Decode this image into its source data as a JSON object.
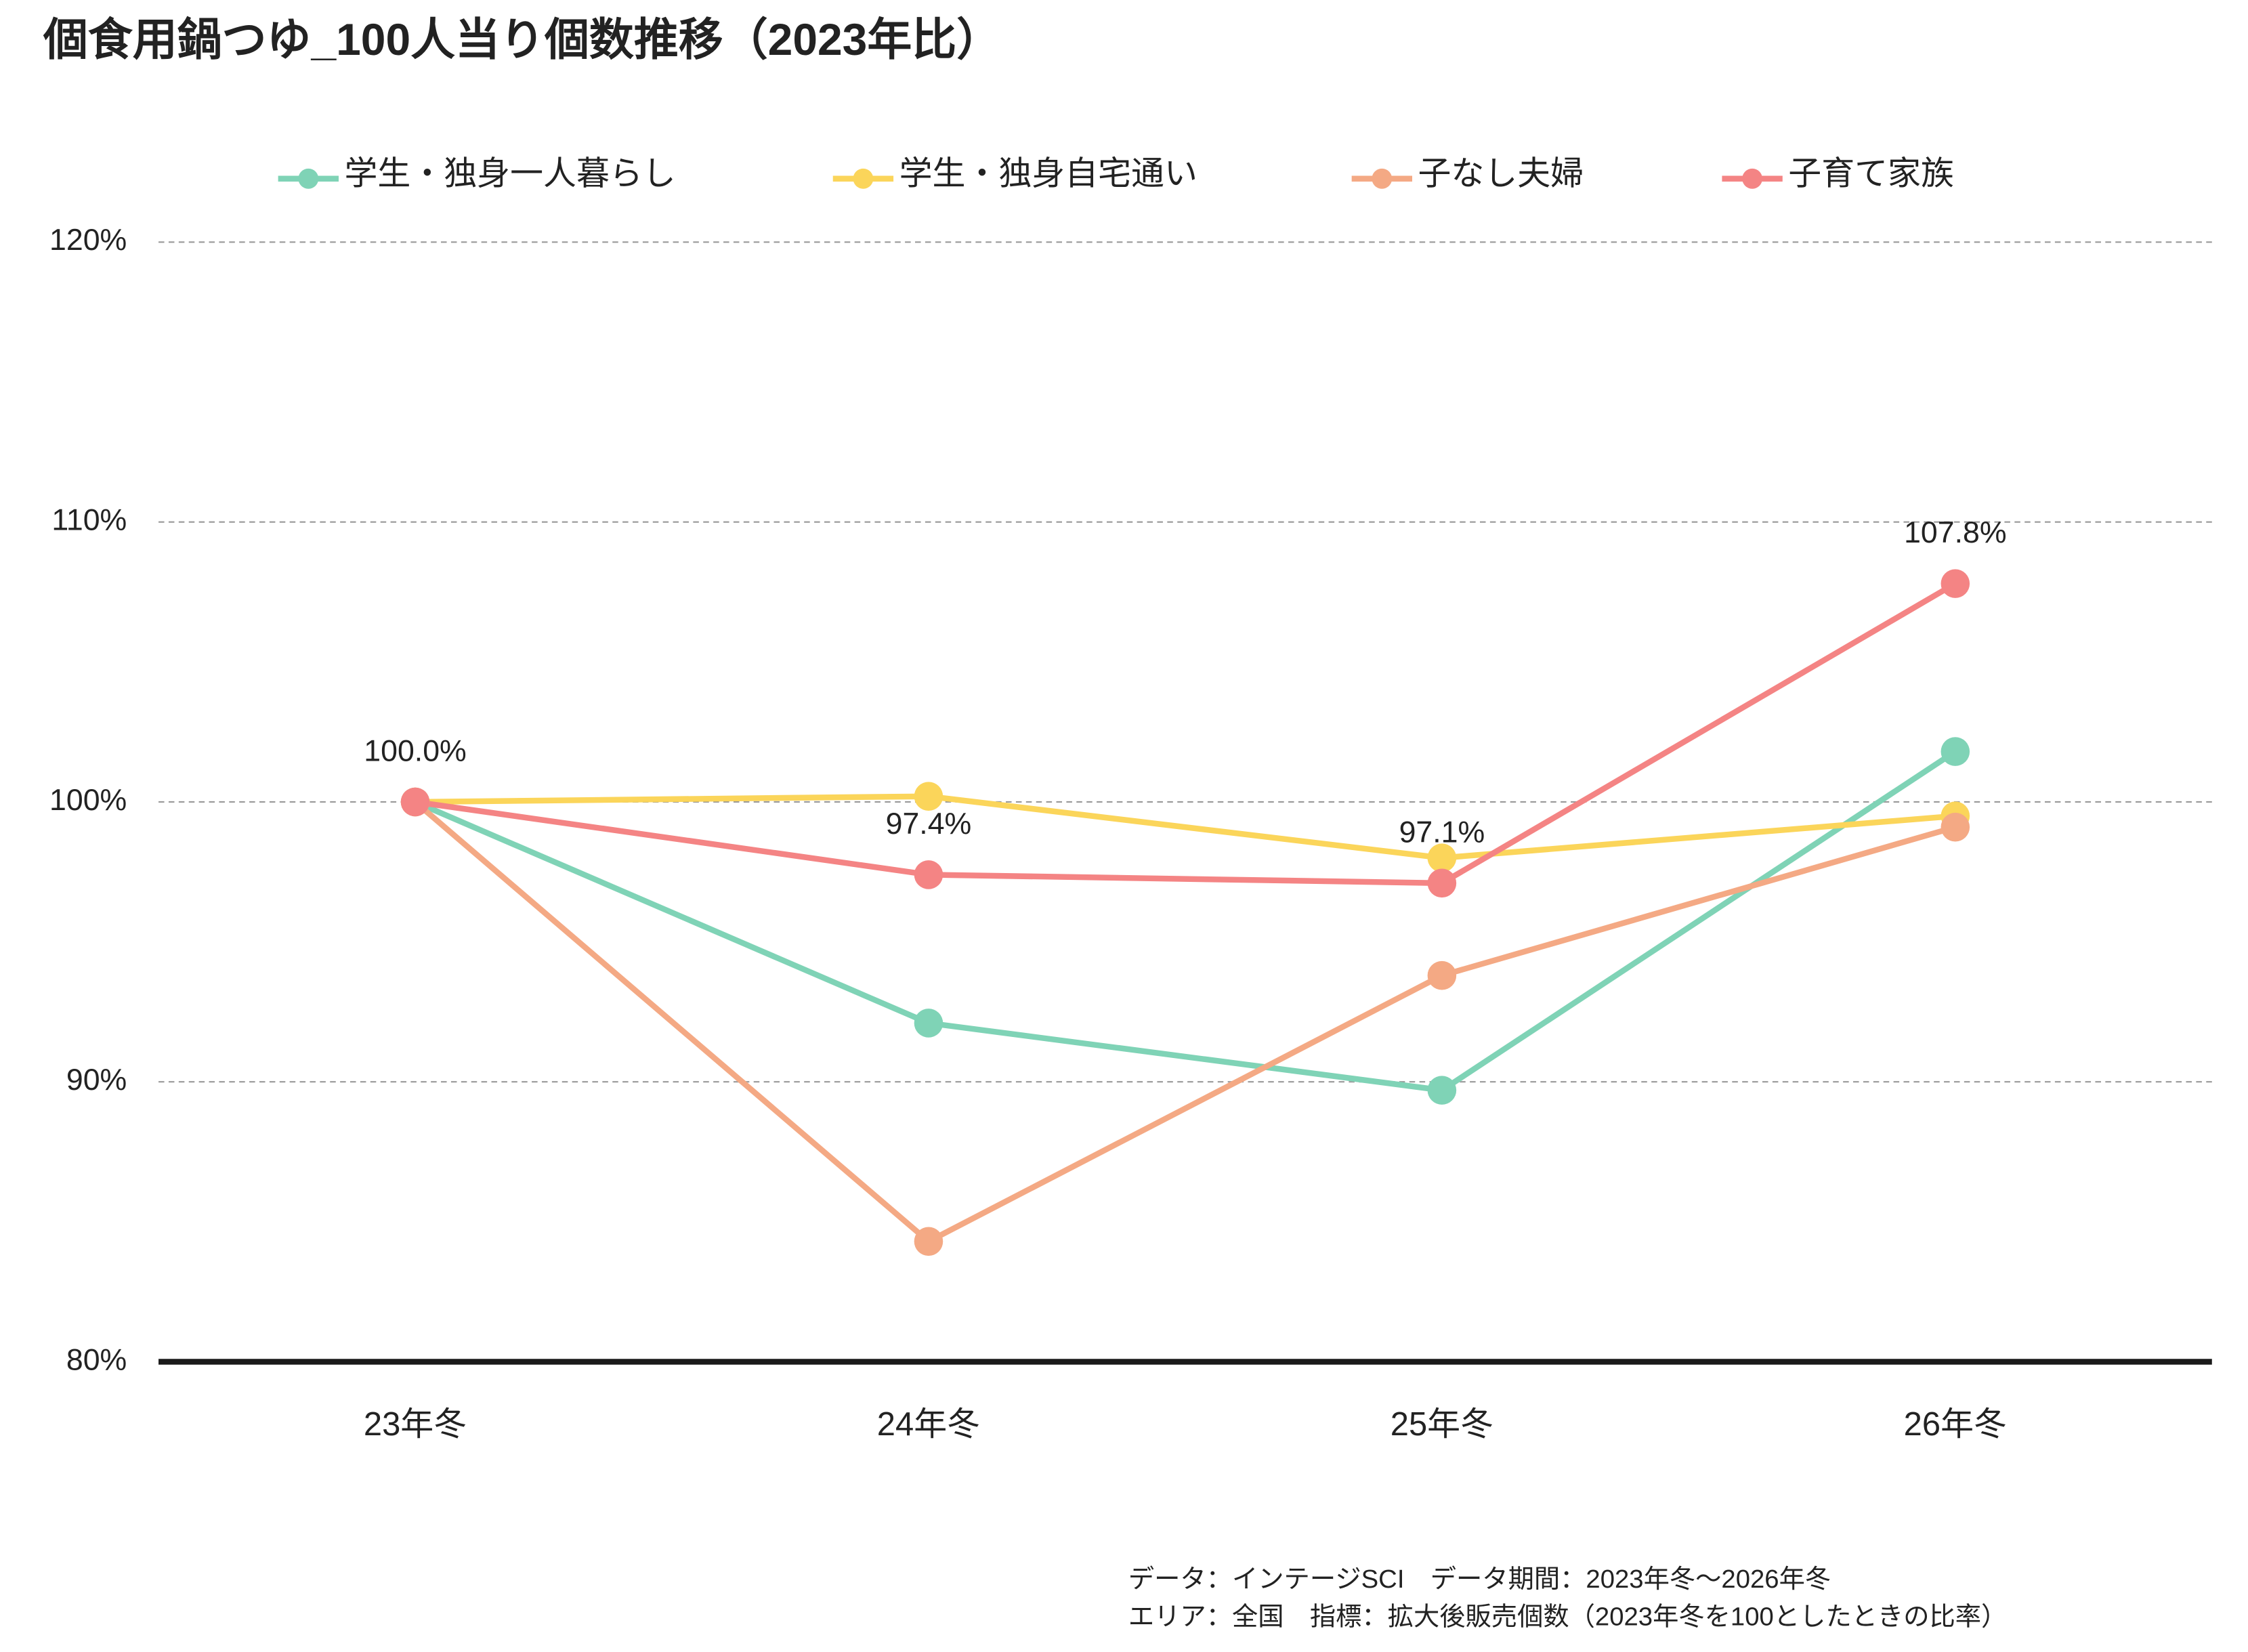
{
  "chart_data": {
    "type": "line",
    "title": "個食用鍋つゆ_100人当り個数推移（2023年比）",
    "categories": [
      "23年冬",
      "24年冬",
      "25年冬",
      "26年冬"
    ],
    "series": [
      {
        "name": "学生・独身一人暮らし",
        "color": "#7fd3b6",
        "values": [
          100,
          92.1,
          89.7,
          101.8
        ]
      },
      {
        "name": "学生・独身自宅通い",
        "color": "#fbd55a",
        "values": [
          100,
          100.2,
          98.0,
          99.5
        ]
      },
      {
        "name": "子なし夫婦",
        "color": "#f4a984",
        "values": [
          100,
          84.3,
          93.8,
          99.1
        ]
      },
      {
        "name": "子育て家族",
        "color": "#f48484",
        "values": [
          100,
          97.4,
          97.1,
          107.8
        ],
        "value_labels": [
          "100.0%",
          "97.4%",
          "97.1%",
          "107.8%"
        ]
      }
    ],
    "ylim": [
      80,
      120
    ],
    "yticks": [
      {
        "value": 80,
        "label": "80%"
      },
      {
        "value": 90,
        "label": "90%"
      },
      {
        "value": 100,
        "label": "100%"
      },
      {
        "value": 110,
        "label": "110%"
      },
      {
        "value": 120,
        "label": "120%"
      }
    ],
    "grid": true,
    "legend": "top",
    "notes": [
      "データ：インテージSCI　データ期間：2023年冬～2026年冬",
      "エリア：全国　指標：拡大後販売個数（2023年冬を100としたときの比率）"
    ]
  }
}
